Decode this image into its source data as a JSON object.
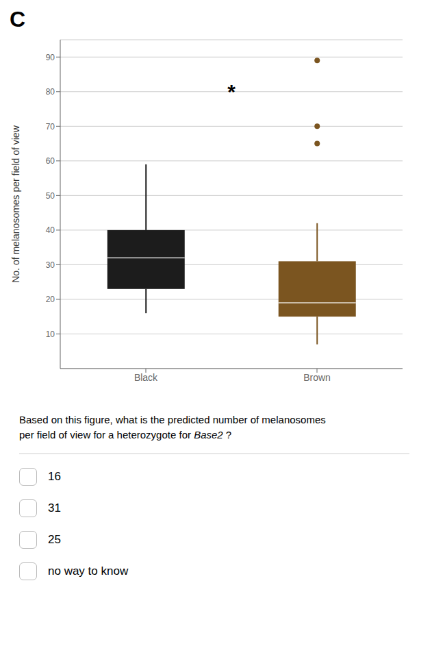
{
  "chart_data": {
    "type": "box",
    "categories": [
      "Black",
      "Brown"
    ],
    "values": [
      {
        "median": 32,
        "q1": 23,
        "q3": 40,
        "whisker_low": 16,
        "whisker_high": 59,
        "outliers": []
      },
      {
        "median": 19,
        "q1": 15,
        "q3": 31,
        "whisker_low": 7,
        "whisker_high": 42,
        "outliers": [
          65,
          70,
          89
        ]
      }
    ],
    "colors": [
      "#1c1c1c",
      "#7B5520"
    ],
    "ylabel": "No. of melanosomes per field of view",
    "ylim": [
      0,
      95
    ],
    "yticks": [
      10,
      20,
      30,
      40,
      50,
      60,
      70,
      80,
      90
    ],
    "grid": true,
    "annotations": [
      {
        "text": "*",
        "y": 80
      }
    ],
    "panel_label": "C",
    "question": {
      "line1": "Based on this figure, what is the predicted number of melanosomes",
      "line2": "per field of view for a heterozygote for ",
      "italic": "Base2",
      "end": " ?"
    },
    "choices": [
      "16",
      "31",
      "25",
      "no way to know"
    ]
  }
}
